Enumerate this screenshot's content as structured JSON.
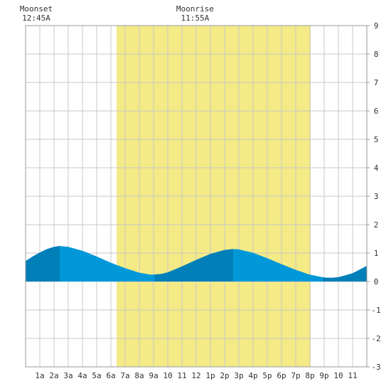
{
  "chart_data": {
    "type": "area",
    "title": "",
    "xlabel": "",
    "ylabel": "",
    "xlim": [
      0,
      24
    ],
    "ylim": [
      -3,
      9
    ],
    "yticks": [
      -3,
      -2,
      -1,
      0,
      1,
      2,
      3,
      4,
      5,
      6,
      7,
      8,
      9
    ],
    "xtick_labels": [
      "1a",
      "2a",
      "3a",
      "4a",
      "5a",
      "6a",
      "7a",
      "8a",
      "9a",
      "10",
      "11",
      "12",
      "1p",
      "2p",
      "3p",
      "4p",
      "5p",
      "6p",
      "7p",
      "8p",
      "9p",
      "10",
      "11"
    ],
    "grid": true,
    "daylight": {
      "start_hour": 6.4,
      "end_hour": 20.05,
      "color": "#f4ea86"
    },
    "moon_events": [
      {
        "label": "Moonset",
        "time": "12:45A",
        "hour": 0.75
      },
      {
        "label": "Moonrise",
        "time": "11:55A",
        "hour": 11.92
      }
    ],
    "series": [
      {
        "x": [
          0,
          0.5,
          1,
          1.5,
          2,
          2.4,
          3,
          4,
          5,
          6,
          7,
          8,
          8.8,
          9.5,
          10,
          11,
          12,
          13,
          14,
          14.6,
          15,
          16,
          17,
          18,
          19,
          20,
          21,
          21.5,
          22,
          23,
          24
        ],
        "values": [
          0.72,
          0.88,
          1.02,
          1.14,
          1.22,
          1.25,
          1.22,
          1.08,
          0.88,
          0.66,
          0.47,
          0.31,
          0.24,
          0.26,
          0.32,
          0.53,
          0.76,
          0.97,
          1.11,
          1.14,
          1.13,
          1.01,
          0.82,
          0.61,
          0.41,
          0.24,
          0.14,
          0.13,
          0.15,
          0.29,
          0.55
        ]
      }
    ],
    "colors": {
      "fill_light": "#0098d9",
      "fill_dark": "#007fb8",
      "grid": "#c8c8c8",
      "axis": "#999999"
    },
    "dark_bands": [
      [
        0,
        2.4
      ],
      [
        9.1,
        14.6
      ],
      [
        20.9,
        24
      ]
    ]
  }
}
